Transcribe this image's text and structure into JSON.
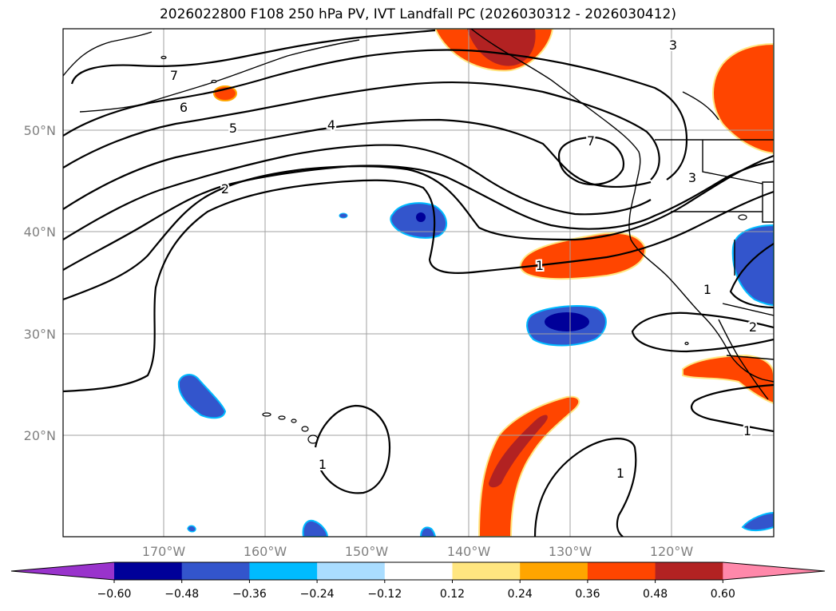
{
  "title": "2026022800 F108 250 hPa PV, IVT Landfall PC (2026030312 - 2026030412)",
  "map": {
    "lat_labels": [
      "50°N",
      "40°N",
      "30°N",
      "20°N"
    ],
    "lon_labels": [
      "170°W",
      "160°W",
      "150°W",
      "140°W",
      "130°W",
      "120°W"
    ],
    "contour_labels": [
      "7",
      "6",
      "5",
      "4",
      "2",
      "3",
      "7",
      "3",
      "1",
      "1",
      "2",
      "1",
      "1",
      "1"
    ]
  },
  "colorbar": {
    "ticks": [
      "−0.60",
      "−0.48",
      "−0.36",
      "−0.24",
      "−0.12",
      "0.12",
      "0.24",
      "0.36",
      "0.48",
      "0.60"
    ],
    "colors": [
      "#9933cc",
      "#000099",
      "#3355cc",
      "#00bbff",
      "#aaddff",
      "#ffffff",
      "#ffe680",
      "#ffa500",
      "#ff4500",
      "#b22222",
      "#ff88aa"
    ]
  },
  "fills": {
    "neg_outer": "#00bbff",
    "neg_mid": "#3355cc",
    "neg_core": "#000099",
    "pos_outer": "#ffe680",
    "pos_mid": "#ff4500",
    "pos_core": "#b22222"
  }
}
